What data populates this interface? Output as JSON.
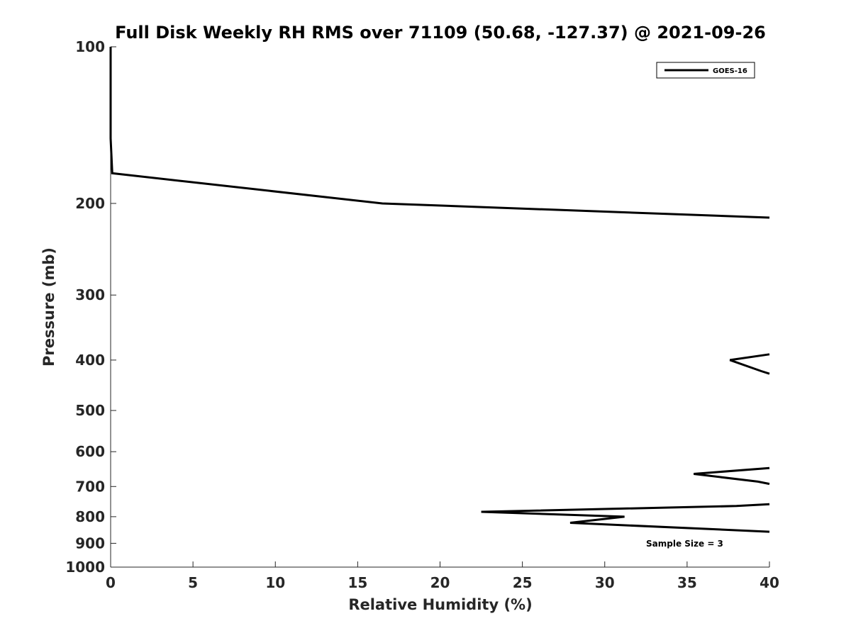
{
  "chart_data": {
    "type": "line",
    "title": "Full Disk Weekly RH RMS over 71109 (50.68, -127.37) @ 2021-09-26",
    "xlabel": "Relative Humidity (%)",
    "ylabel": "Pressure (mb)",
    "xlim": [
      0,
      40
    ],
    "ylim": [
      100,
      1000
    ],
    "y_scale": "log",
    "y_reversed": true,
    "grid": false,
    "legend_position": "top-right",
    "x_ticks": [
      "0",
      "5",
      "10",
      "15",
      "20",
      "25",
      "30",
      "35",
      "40"
    ],
    "y_ticks": [
      "100",
      "200",
      "300",
      "400",
      "500",
      "600",
      "700",
      "800",
      "900",
      "1000"
    ],
    "series": [
      {
        "name": "GOES-16",
        "color": "#000000",
        "points": [
          {
            "x": 0.0,
            "y": 100
          },
          {
            "x": 0.0,
            "y": 150
          },
          {
            "x": 0.1,
            "y": 175
          },
          {
            "x": 16.5,
            "y": 200
          },
          {
            "x": 40.0,
            "y": 213
          },
          {
            "x": null,
            "y": null
          },
          {
            "x": 40.0,
            "y": 390
          },
          {
            "x": 37.6,
            "y": 400
          },
          {
            "x": 39.5,
            "y": 420
          },
          {
            "x": 40.0,
            "y": 425
          },
          {
            "x": null,
            "y": null
          },
          {
            "x": 40.0,
            "y": 645
          },
          {
            "x": 35.4,
            "y": 662
          },
          {
            "x": 39.3,
            "y": 685
          },
          {
            "x": 40.0,
            "y": 692
          },
          {
            "x": null,
            "y": null
          },
          {
            "x": 40.0,
            "y": 757
          },
          {
            "x": 38.0,
            "y": 763
          },
          {
            "x": 22.5,
            "y": 783
          },
          {
            "x": 31.2,
            "y": 800
          },
          {
            "x": 27.9,
            "y": 822
          },
          {
            "x": 40.0,
            "y": 855
          }
        ]
      }
    ],
    "annotations": [
      "Sample Size = 3"
    ]
  }
}
